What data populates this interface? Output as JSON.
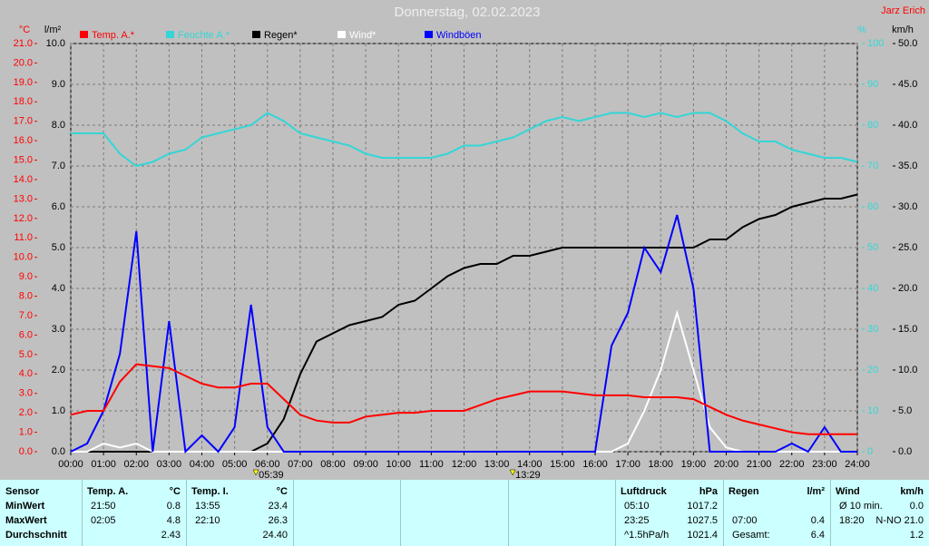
{
  "chart_data": {
    "type": "line",
    "title": "Donnerstag, 02.02.2023",
    "author": "Jarz Erich",
    "ylabel": "°C",
    "y2label": "l/m²",
    "y3label": "%",
    "y4label": "km/h",
    "grid": true,
    "x": [
      0,
      0.5,
      1,
      1.5,
      2,
      2.5,
      3,
      3.5,
      4,
      4.5,
      5,
      5.5,
      6,
      6.5,
      7,
      7.5,
      8,
      8.5,
      9,
      9.5,
      10,
      10.5,
      11,
      11.5,
      12,
      12.5,
      13,
      13.5,
      14,
      14.5,
      15,
      15.5,
      16,
      16.5,
      17,
      17.5,
      18,
      18.5,
      19,
      19.5,
      20,
      20.5,
      21,
      21.5,
      22,
      22.5,
      23,
      23.5,
      24
    ],
    "xlim": [
      0,
      24
    ],
    "xticks": [
      {
        "value": 0,
        "label": "00:00"
      },
      {
        "value": 1,
        "label": "01:00"
      },
      {
        "value": 2,
        "label": "02:00"
      },
      {
        "value": 3,
        "label": "03:00"
      },
      {
        "value": 4,
        "label": "04:00"
      },
      {
        "value": 5,
        "label": "05:00"
      },
      {
        "value": 6,
        "label": "06:00"
      },
      {
        "value": 7,
        "label": "07:00"
      },
      {
        "value": 8,
        "label": "08:00"
      },
      {
        "value": 9,
        "label": "09:00"
      },
      {
        "value": 10,
        "label": "10:00"
      },
      {
        "value": 11,
        "label": "11:00"
      },
      {
        "value": 12,
        "label": "12:00"
      },
      {
        "value": 13,
        "label": "13:00"
      },
      {
        "value": 14,
        "label": "14:00"
      },
      {
        "value": 15,
        "label": "15:00"
      },
      {
        "value": 16,
        "label": "16:00"
      },
      {
        "value": 17,
        "label": "17:00"
      },
      {
        "value": 18,
        "label": "18:00"
      },
      {
        "value": 19,
        "label": "19:00"
      },
      {
        "value": 20,
        "label": "20:00"
      },
      {
        "value": 21,
        "label": "21:00"
      },
      {
        "value": 22,
        "label": "22:00"
      },
      {
        "value": 23,
        "label": "23:00"
      },
      {
        "value": 24,
        "label": "24:00"
      }
    ],
    "ylim": [
      0,
      21
    ],
    "yticks": [
      {
        "value": 0,
        "label": "0.0"
      },
      {
        "value": 1,
        "label": "1.0"
      },
      {
        "value": 2,
        "label": "2.0"
      },
      {
        "value": 3,
        "label": "3.0"
      },
      {
        "value": 4,
        "label": "4.0"
      },
      {
        "value": 5,
        "label": "5.0"
      },
      {
        "value": 6,
        "label": "6.0"
      },
      {
        "value": 7,
        "label": "7.0"
      },
      {
        "value": 8,
        "label": "8.0"
      },
      {
        "value": 9,
        "label": "9.0"
      },
      {
        "value": 10,
        "label": "10.0"
      },
      {
        "value": 11,
        "label": "11.0"
      },
      {
        "value": 12,
        "label": "12.0"
      },
      {
        "value": 13,
        "label": "13.0"
      },
      {
        "value": 14,
        "label": "14.0"
      },
      {
        "value": 15,
        "label": "15.0"
      },
      {
        "value": 16,
        "label": "16.0"
      },
      {
        "value": 17,
        "label": "17.0"
      },
      {
        "value": 18,
        "label": "18.0"
      },
      {
        "value": 19,
        "label": "19.0"
      },
      {
        "value": 20,
        "label": "20.0"
      },
      {
        "value": 21,
        "label": "21.0"
      }
    ],
    "y2lim": [
      0,
      10
    ],
    "y2ticks": [
      {
        "value": 0,
        "label": "0.0"
      },
      {
        "value": 1,
        "label": "1.0"
      },
      {
        "value": 2,
        "label": "2.0"
      },
      {
        "value": 3,
        "label": "3.0"
      },
      {
        "value": 4,
        "label": "4.0"
      },
      {
        "value": 5,
        "label": "5.0"
      },
      {
        "value": 6,
        "label": "6.0"
      },
      {
        "value": 7,
        "label": "7.0"
      },
      {
        "value": 8,
        "label": "8.0"
      },
      {
        "value": 9,
        "label": "9.0"
      },
      {
        "value": 10,
        "label": "10.0"
      }
    ],
    "y3lim": [
      0,
      100
    ],
    "y3ticks": [
      0,
      10,
      20,
      30,
      40,
      50,
      60,
      70,
      80,
      90,
      100
    ],
    "y4lim": [
      0,
      50
    ],
    "y4ticks": [
      {
        "value": 0,
        "label": "0.0"
      },
      {
        "value": 5,
        "label": "5.0"
      },
      {
        "value": 10,
        "label": "10.0"
      },
      {
        "value": 15,
        "label": "15.0"
      },
      {
        "value": 20,
        "label": "20.0"
      },
      {
        "value": 25,
        "label": "25.0"
      },
      {
        "value": 30,
        "label": "30.0"
      },
      {
        "value": 35,
        "label": "35.0"
      },
      {
        "value": 40,
        "label": "40.0"
      },
      {
        "value": 45,
        "label": "45.0"
      },
      {
        "value": 50,
        "label": "50.0"
      }
    ],
    "series": [
      {
        "name": "Temp. A.*",
        "color": "#ff0000",
        "axis": "y",
        "values": [
          1.9,
          2.1,
          2.1,
          3.6,
          4.5,
          4.4,
          4.3,
          3.9,
          3.5,
          3.3,
          3.3,
          3.5,
          3.5,
          2.7,
          1.9,
          1.6,
          1.5,
          1.5,
          1.8,
          1.9,
          2.0,
          2.0,
          2.1,
          2.1,
          2.1,
          2.4,
          2.7,
          2.9,
          3.1,
          3.1,
          3.1,
          3.0,
          2.9,
          2.9,
          2.9,
          2.8,
          2.8,
          2.8,
          2.7,
          2.3,
          1.9,
          1.6,
          1.4,
          1.2,
          1.0,
          0.9,
          0.9,
          0.9,
          0.9
        ]
      },
      {
        "name": "Feuchte A.*",
        "color": "#33d6d6",
        "axis": "y3",
        "values": [
          78,
          78,
          78,
          73,
          70,
          71,
          73,
          74,
          77,
          78,
          79,
          80,
          83,
          81,
          78,
          77,
          76,
          75,
          73,
          72,
          72,
          72,
          72,
          73,
          75,
          75,
          76,
          77,
          79,
          81,
          82,
          81,
          82,
          83,
          83,
          82,
          83,
          82,
          83,
          83,
          81,
          78,
          76,
          76,
          74,
          73,
          72,
          72,
          71
        ]
      },
      {
        "name": "Regen*",
        "color": "#000000",
        "axis": "y2",
        "values": [
          0,
          0,
          0,
          0,
          0,
          0,
          0,
          0,
          0,
          0,
          0,
          0,
          0.2,
          0.8,
          1.9,
          2.7,
          2.9,
          3.1,
          3.2,
          3.3,
          3.6,
          3.7,
          4.0,
          4.3,
          4.5,
          4.6,
          4.6,
          4.8,
          4.8,
          4.9,
          5.0,
          5.0,
          5.0,
          5.0,
          5.0,
          5.0,
          5.0,
          5.0,
          5.0,
          5.2,
          5.2,
          5.5,
          5.7,
          5.8,
          6.0,
          6.1,
          6.2,
          6.2,
          6.3
        ]
      },
      {
        "name": "Wind*",
        "color": "#ffffff",
        "axis": "y4",
        "values": [
          0,
          0,
          1,
          0.5,
          1,
          0,
          0,
          0,
          0,
          0,
          0,
          0,
          0,
          0,
          0,
          0,
          0,
          0,
          0,
          0,
          0,
          0,
          0,
          0,
          0,
          0,
          0,
          0,
          0,
          0,
          0,
          0,
          0,
          0,
          1,
          5,
          10,
          17,
          10,
          3,
          0.5,
          0,
          0,
          0,
          0,
          0,
          0,
          0,
          0
        ]
      },
      {
        "name": "Windböen",
        "color": "#0000ff",
        "axis": "y4",
        "values": [
          0,
          1,
          5,
          12,
          27,
          0,
          16,
          0,
          2,
          0,
          3,
          18,
          3,
          0,
          0,
          0,
          0,
          0,
          0,
          0,
          0,
          0,
          0,
          0,
          0,
          0,
          0,
          0,
          0,
          0,
          0,
          0,
          0,
          13,
          17,
          25,
          22,
          29,
          20,
          0,
          0,
          0,
          0,
          0,
          1,
          0,
          3,
          0,
          0
        ]
      }
    ],
    "annotations": [
      {
        "x": 5.65,
        "label": "05:39"
      },
      {
        "x": 13.4833,
        "label": "13:29"
      }
    ]
  },
  "table": {
    "row_labels": [
      "Sensor",
      "MinWert",
      "MaxWert",
      "Durchschnitt"
    ],
    "columns": [
      {
        "title": "Temp. A.",
        "unit": "°C",
        "cells": [
          [
            "21:50",
            "0.8"
          ],
          [
            "02:05",
            "4.8"
          ],
          [
            null,
            "2.43"
          ]
        ]
      },
      {
        "title": "Temp. I.",
        "unit": "°C",
        "cells": [
          [
            "13:55",
            "23.4"
          ],
          [
            "22:10",
            "26.3"
          ],
          [
            null,
            "24.40"
          ]
        ]
      },
      {
        "title": "Luftdruck",
        "unit": "hPa",
        "cells": [
          [
            "05:10",
            "1017.2"
          ],
          [
            "23:25",
            "1027.5"
          ],
          [
            "^1.5hPa/h",
            "1021.4"
          ]
        ]
      },
      {
        "title": "Regen",
        "unit": "l/m²",
        "cells": [
          [
            null,
            null
          ],
          [
            "07:00",
            "0.4"
          ],
          [
            "Gesamt:",
            "6.4"
          ]
        ]
      },
      {
        "title": "Wind",
        "unit": "km/h",
        "cells": [
          [
            "Ø 10 min.",
            "0.0"
          ],
          [
            "18:20",
            "N-NO 21.0"
          ],
          [
            null,
            "1.2"
          ]
        ]
      }
    ]
  }
}
